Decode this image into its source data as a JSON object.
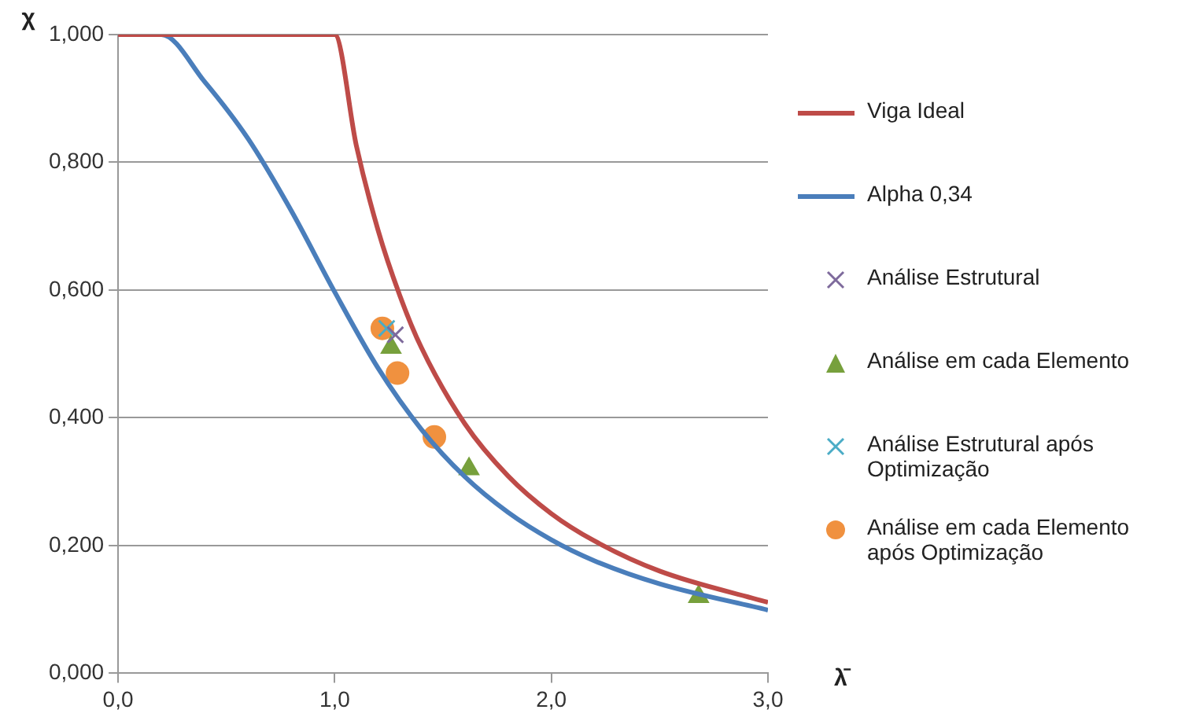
{
  "chart_data": {
    "type": "line",
    "xlabel": "λ̄",
    "ylabel": "χ",
    "xlim": [
      0,
      3
    ],
    "xticks": [
      {
        "value": 0,
        "label": "0,0"
      },
      {
        "value": 1,
        "label": "1,0"
      },
      {
        "value": 2,
        "label": "2,0"
      },
      {
        "value": 3,
        "label": "3,0"
      }
    ],
    "ylim": [
      0,
      1
    ],
    "yticks": [
      {
        "value": 0,
        "label": "0,000"
      },
      {
        "value": 0.2,
        "label": "0,200"
      },
      {
        "value": 0.4,
        "label": "0,400"
      },
      {
        "value": 0.6,
        "label": "0,600"
      },
      {
        "value": 0.8,
        "label": "0,800"
      },
      {
        "value": 1,
        "label": "1,000"
      }
    ],
    "grid": "y",
    "legend": "right",
    "series": [
      {
        "name": "Viga Ideal",
        "type": "line",
        "marker": "none",
        "color": "#be4b48",
        "x": [
          0,
          1,
          1.1,
          1.2,
          1.3,
          1.4,
          1.6,
          1.8,
          2,
          2.2,
          2.5,
          3
        ],
        "values": [
          1,
          1,
          0.826,
          0.694,
          0.592,
          0.51,
          0.391,
          0.309,
          0.25,
          0.207,
          0.16,
          0.111
        ]
      },
      {
        "name": "Alpha 0,34",
        "type": "line",
        "marker": "none",
        "color": "#4a7ebb",
        "x": [
          0,
          0.2,
          0.4,
          0.6,
          0.8,
          1,
          1.2,
          1.4,
          1.6,
          1.8,
          2,
          2.2,
          2.5,
          3
        ],
        "values": [
          1,
          1,
          0.926,
          0.837,
          0.724,
          0.597,
          0.478,
          0.382,
          0.308,
          0.252,
          0.209,
          0.176,
          0.14,
          0.099
        ]
      },
      {
        "name": "Análise Estrutural",
        "type": "scatter",
        "marker": "cross",
        "color": "#7e6a9c",
        "x": [
          1.28
        ],
        "values": [
          0.53
        ]
      },
      {
        "name": "Análise em cada Elemento",
        "type": "scatter",
        "marker": "triangle",
        "color": "#77a03c",
        "x": [
          1.26,
          1.62,
          2.68
        ],
        "values": [
          0.51,
          0.32,
          0.12
        ]
      },
      {
        "name": "Análise Estrutural após Optimização",
        "type": "scatter",
        "marker": "cross",
        "color": "#4bacc6",
        "x": [
          1.24
        ],
        "values": [
          0.54
        ]
      },
      {
        "name": "Análise em cada Elemento após Optimização",
        "type": "scatter",
        "marker": "circle",
        "color": "#f0913f",
        "x": [
          1.22,
          1.29,
          1.46
        ],
        "values": [
          0.54,
          0.47,
          0.37
        ]
      }
    ]
  }
}
